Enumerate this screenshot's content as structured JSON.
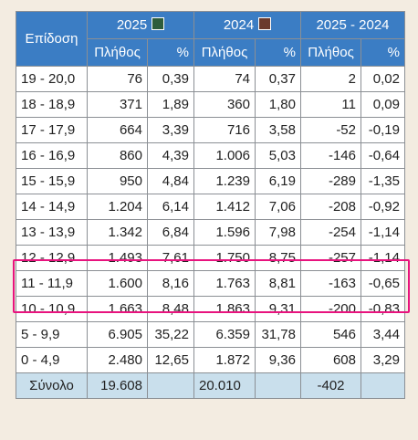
{
  "header": {
    "period_label": "Επίδοση",
    "year_a": "2025",
    "year_b": "2024",
    "diff": "2025 - 2024",
    "count_label": "Πλήθος",
    "pct_label": "%"
  },
  "colors": {
    "header_bg": "#3b7dc4",
    "year_a_marker": "#2e5d3c",
    "year_b_marker": "#6b3a2c",
    "total_bg": "#c9dfec",
    "highlight": "#e8137e"
  },
  "rows": [
    {
      "range": "19 - 20,0",
      "n25": "76",
      "p25": "0,39",
      "n24": "74",
      "p24": "0,37",
      "dn": "2",
      "dp": "0,02"
    },
    {
      "range": "18 - 18,9",
      "n25": "371",
      "p25": "1,89",
      "n24": "360",
      "p24": "1,80",
      "dn": "11",
      "dp": "0,09"
    },
    {
      "range": "17 - 17,9",
      "n25": "664",
      "p25": "3,39",
      "n24": "716",
      "p24": "3,58",
      "dn": "-52",
      "dp": "-0,19"
    },
    {
      "range": "16 - 16,9",
      "n25": "860",
      "p25": "4,39",
      "n24": "1.006",
      "p24": "5,03",
      "dn": "-146",
      "dp": "-0,64"
    },
    {
      "range": "15 - 15,9",
      "n25": "950",
      "p25": "4,84",
      "n24": "1.239",
      "p24": "6,19",
      "dn": "-289",
      "dp": "-1,35"
    },
    {
      "range": "14 - 14,9",
      "n25": "1.204",
      "p25": "6,14",
      "n24": "1.412",
      "p24": "7,06",
      "dn": "-208",
      "dp": "-0,92"
    },
    {
      "range": "13 - 13,9",
      "n25": "1.342",
      "p25": "6,84",
      "n24": "1.596",
      "p24": "7,98",
      "dn": "-254",
      "dp": "-1,14"
    },
    {
      "range": "12 - 12,9",
      "n25": "1.493",
      "p25": "7,61",
      "n24": "1.750",
      "p24": "8,75",
      "dn": "-257",
      "dp": "-1,14"
    },
    {
      "range": "11 - 11,9",
      "n25": "1.600",
      "p25": "8,16",
      "n24": "1.763",
      "p24": "8,81",
      "dn": "-163",
      "dp": "-0,65"
    },
    {
      "range": "10 - 10,9",
      "n25": "1.663",
      "p25": "8,48",
      "n24": "1.863",
      "p24": "9,31",
      "dn": "-200",
      "dp": "-0,83"
    },
    {
      "range": "5 - 9,9",
      "n25": "6.905",
      "p25": "35,22",
      "n24": "6.359",
      "p24": "31,78",
      "dn": "546",
      "dp": "3,44"
    },
    {
      "range": "0 - 4,9",
      "n25": "2.480",
      "p25": "12,65",
      "n24": "1.872",
      "p24": "9,36",
      "dn": "608",
      "dp": "3,29"
    }
  ],
  "total": {
    "label": "Σύνολο",
    "n25": "19.608",
    "n24": "20.010",
    "dn": "-402"
  }
}
